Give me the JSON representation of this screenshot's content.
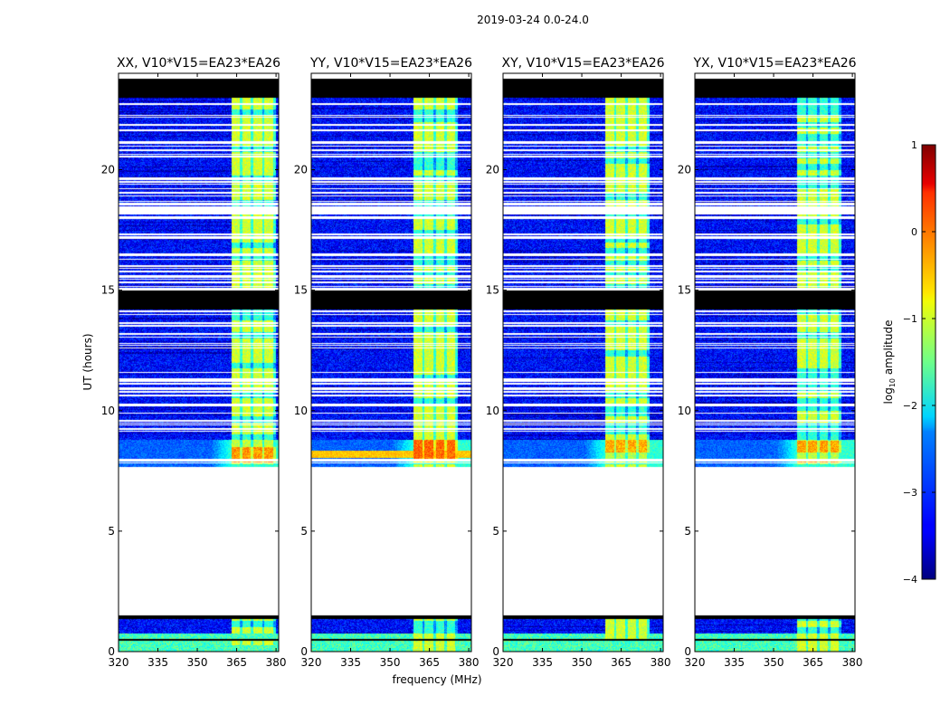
{
  "chart_data": {
    "type": "heatmap",
    "suptitle": "2019-03-24 0.0-24.0",
    "xlabel": "frequency (MHz)",
    "ylabel": "UT (hours)",
    "xlim": [
      320,
      381
    ],
    "ylim": [
      0,
      24
    ],
    "xticks": [
      "320",
      "335",
      "350",
      "365",
      "380"
    ],
    "xtick_values": [
      320,
      335,
      350,
      365,
      380
    ],
    "yticks": [
      "0",
      "5",
      "10",
      "15",
      "20"
    ],
    "ytick_values": [
      0,
      5,
      10,
      15,
      20
    ],
    "panels": [
      {
        "title": "XX, V10*V15=EA23*EA26",
        "strong_band_MHz": [
          363,
          380
        ],
        "rfi_level": 0.55
      },
      {
        "title": "YY, V10*V15=EA23*EA26",
        "strong_band_MHz": [
          359,
          376
        ],
        "rfi_level": 0.8
      },
      {
        "title": "XY, V10*V15=EA23*EA26",
        "strong_band_MHz": [
          359,
          376
        ],
        "rfi_level": 0.45
      },
      {
        "title": "YX, V10*V15=EA23*EA26",
        "strong_band_MHz": [
          359,
          376
        ],
        "rfi_level": 0.5
      }
    ],
    "colorbar": {
      "label": "log10 amplitude",
      "label_main": "log",
      "label_sub": "10",
      "label_tail": " amplitude",
      "min": -4,
      "max": 1,
      "ticks": [
        "1",
        "0",
        "−1",
        "−2",
        "−3",
        "−4"
      ],
      "tick_values": [
        1,
        0,
        -1,
        -2,
        -3,
        -4
      ],
      "colormap": "jet"
    },
    "time_segments": {
      "no_data_hours": [
        [
          1.45,
          7.65
        ]
      ],
      "flagged_black_hours": [
        [
          23.0,
          23.8
        ],
        [
          14.2,
          15.0
        ],
        [
          1.35,
          1.5
        ],
        [
          0.42,
          0.5
        ]
      ],
      "strong_rfi_hours": [
        7.8,
        8.8
      ],
      "low_band_rfi_hours": [
        0,
        0.75
      ]
    }
  }
}
